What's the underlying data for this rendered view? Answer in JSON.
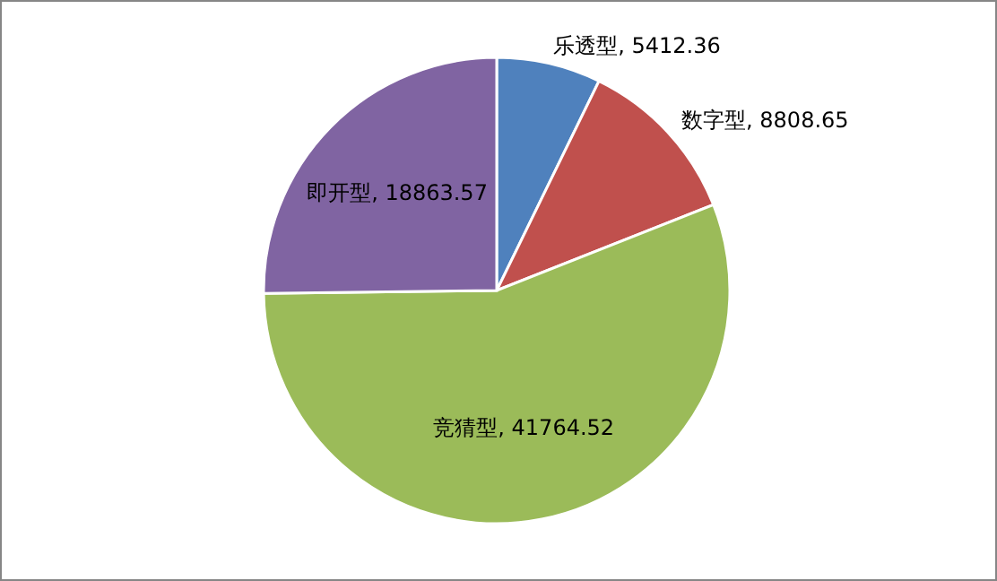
{
  "chart_data": {
    "type": "pie",
    "categories": [
      "乐透型",
      "数字型",
      "竞猜型",
      "即开型"
    ],
    "values": [
      5412.36,
      8808.65,
      41764.52,
      18863.57
    ],
    "colors": [
      "#4f81bd",
      "#c0504d",
      "#9bbb59",
      "#8064a2"
    ],
    "value_labels": [
      ", 5412.36",
      ", 8808.65",
      ", 41764.52",
      ", 18863.57"
    ]
  }
}
